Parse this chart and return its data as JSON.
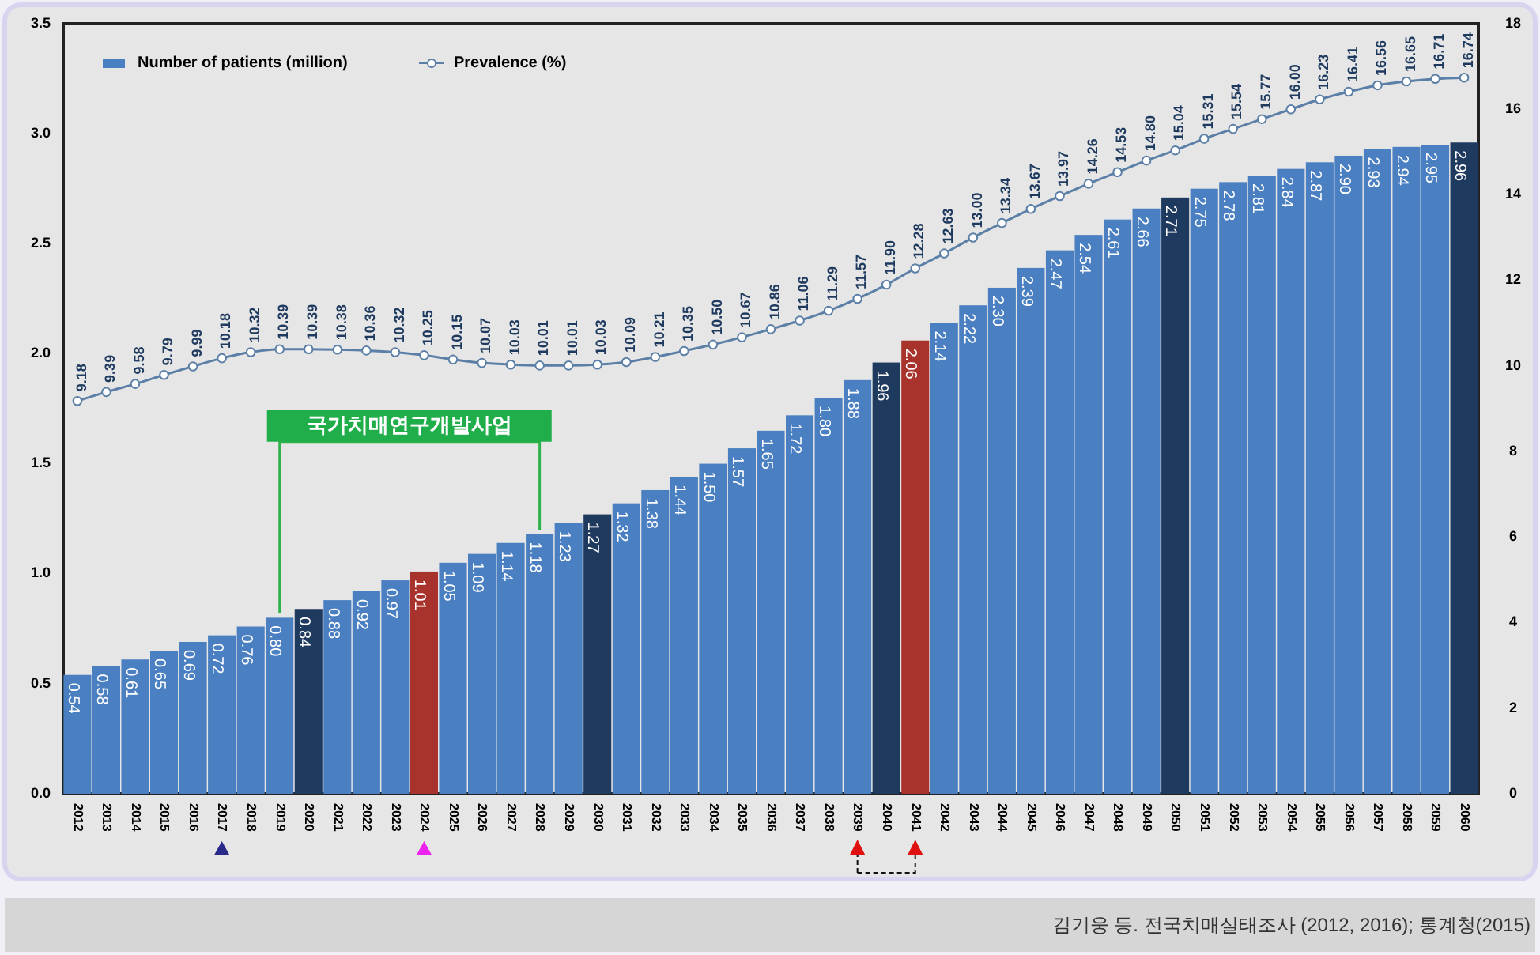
{
  "chart_data": {
    "type": "bar",
    "categories": [
      "2012",
      "2013",
      "2014",
      "2015",
      "2016",
      "2017",
      "2018",
      "2019",
      "2020",
      "2021",
      "2022",
      "2023",
      "2024",
      "2025",
      "2026",
      "2027",
      "2028",
      "2029",
      "2030",
      "2031",
      "2032",
      "2033",
      "2034",
      "2035",
      "2036",
      "2037",
      "2038",
      "2039",
      "2040",
      "2041",
      "2042",
      "2043",
      "2044",
      "2045",
      "2046",
      "2047",
      "2048",
      "2049",
      "2050",
      "2051",
      "2052",
      "2053",
      "2054",
      "2055",
      "2056",
      "2057",
      "2058",
      "2059",
      "2060"
    ],
    "series": [
      {
        "name": "Number of patients (million)",
        "color": "#4a7fc1",
        "colors": [
          "#4a7fc1",
          "#4a7fc1",
          "#4a7fc1",
          "#4a7fc1",
          "#4a7fc1",
          "#4a7fc1",
          "#4a7fc1",
          "#4a7fc1",
          "#1f3a5f",
          "#4a7fc1",
          "#4a7fc1",
          "#4a7fc1",
          "#a8332d",
          "#4a7fc1",
          "#4a7fc1",
          "#4a7fc1",
          "#4a7fc1",
          "#4a7fc1",
          "#1f3a5f",
          "#4a7fc1",
          "#4a7fc1",
          "#4a7fc1",
          "#4a7fc1",
          "#4a7fc1",
          "#4a7fc1",
          "#4a7fc1",
          "#4a7fc1",
          "#4a7fc1",
          "#1f3a5f",
          "#a8332d",
          "#4a7fc1",
          "#4a7fc1",
          "#4a7fc1",
          "#4a7fc1",
          "#4a7fc1",
          "#4a7fc1",
          "#4a7fc1",
          "#4a7fc1",
          "#1f3a5f",
          "#4a7fc1",
          "#4a7fc1",
          "#4a7fc1",
          "#4a7fc1",
          "#4a7fc1",
          "#4a7fc1",
          "#4a7fc1",
          "#4a7fc1",
          "#4a7fc1",
          "#1f3a5f"
        ],
        "values": [
          0.54,
          0.58,
          0.61,
          0.65,
          0.69,
          0.72,
          0.76,
          0.8,
          0.84,
          0.88,
          0.92,
          0.97,
          1.01,
          1.05,
          1.09,
          1.14,
          1.18,
          1.23,
          1.27,
          1.32,
          1.38,
          1.44,
          1.5,
          1.57,
          1.65,
          1.72,
          1.8,
          1.88,
          1.96,
          2.06,
          2.14,
          2.22,
          2.3,
          2.39,
          2.47,
          2.54,
          2.61,
          2.66,
          2.71,
          2.75,
          2.78,
          2.81,
          2.84,
          2.87,
          2.9,
          2.93,
          2.94,
          2.95,
          2.96
        ],
        "value_labels": [
          "0.54",
          "0.58",
          "0.61",
          "0.65",
          "0.69",
          "0.72",
          "0.76",
          "0.80",
          "0.84",
          "0.88",
          "0.92",
          "0.97",
          "1.01",
          "1.05",
          "1.09",
          "1.14",
          "1.18",
          "1.23",
          "1.27",
          "1.32",
          "1.38",
          "1.44",
          "1.50",
          "1.57",
          "1.65",
          "1.72",
          "1.80",
          "1.88",
          "1.96",
          "2.06",
          "2.14",
          "2.22",
          "2.30",
          "2.39",
          "2.47",
          "2.54",
          "2.61",
          "2.66",
          "2.71",
          "2.75",
          "2.78",
          "2.81",
          "2.84",
          "2.87",
          "2.90",
          "2.93",
          "2.94",
          "2.95",
          "2.96"
        ]
      },
      {
        "name": "Prevalence (%)",
        "type": "line",
        "axis": "y2",
        "color": "#5b7fa6",
        "values": [
          9.18,
          9.39,
          9.58,
          9.79,
          9.99,
          10.18,
          10.32,
          10.39,
          10.39,
          10.38,
          10.36,
          10.32,
          10.25,
          10.15,
          10.07,
          10.03,
          10.01,
          10.01,
          10.03,
          10.09,
          10.21,
          10.35,
          10.5,
          10.67,
          10.86,
          11.06,
          11.29,
          11.57,
          11.9,
          12.28,
          12.63,
          13.0,
          13.34,
          13.67,
          13.97,
          14.26,
          14.53,
          14.8,
          15.04,
          15.31,
          15.54,
          15.77,
          16.0,
          16.23,
          16.41,
          16.56,
          16.65,
          16.71,
          16.74
        ],
        "value_labels": [
          "9.18",
          "9.39",
          "9.58",
          "9.79",
          "9.99",
          "10.18",
          "10.32",
          "10.39",
          "10.39",
          "10.38",
          "10.36",
          "10.32",
          "10.25",
          "10.15",
          "10.07",
          "10.03",
          "10.01",
          "10.01",
          "10.03",
          "10.09",
          "10.21",
          "10.35",
          "10.50",
          "10.67",
          "10.86",
          "11.06",
          "11.29",
          "11.57",
          "11.90",
          "12.28",
          "12.63",
          "13.00",
          "13.34",
          "13.67",
          "13.97",
          "14.26",
          "14.53",
          "14.80",
          "15.04",
          "15.31",
          "15.54",
          "15.77",
          "16.00",
          "16.23",
          "16.41",
          "16.56",
          "16.65",
          "16.71",
          "16.74"
        ]
      }
    ],
    "ylim": [
      0,
      3.5
    ],
    "yticks": [
      {
        "value": 0,
        "label": "0.0"
      },
      0.5,
      {
        "value": 1,
        "label": "1.0"
      },
      1.5,
      {
        "value": 2,
        "label": "2.0"
      },
      2.5,
      {
        "value": 3,
        "label": "3.0"
      },
      3.5
    ],
    "y2lim": [
      0,
      18
    ],
    "y2ticks": [
      0,
      2,
      4,
      6,
      8,
      10,
      12,
      14,
      16,
      18
    ],
    "marker": "circle",
    "legend": "top left",
    "annotations": [
      "국가치매연구개발사업",
      "김기웅 등. 전국치매실태조사 (2012, 2016); 통계청(2015)"
    ]
  }
}
